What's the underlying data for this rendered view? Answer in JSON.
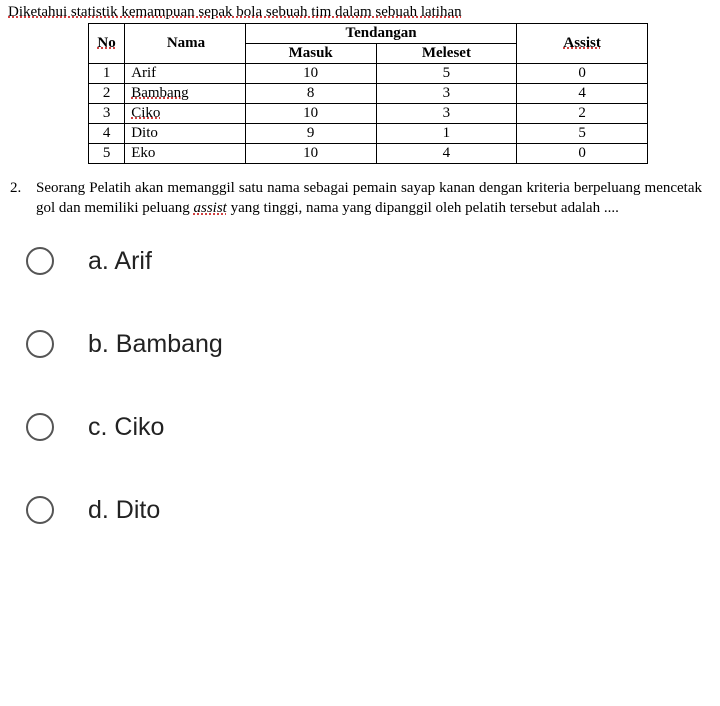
{
  "intro_text": "Diketahui statistik kemampuan sepak bola sebuah tim dalam sebuah latihan",
  "table": {
    "header": {
      "no": "No",
      "nama": "Nama",
      "tendangan": "Tendangan",
      "masuk": "Masuk",
      "meleset": "Meleset",
      "assist": "Assist"
    },
    "rows": [
      {
        "no": "1",
        "nama": "Arif",
        "nama_dotted": false,
        "masuk": "10",
        "meleset": "5",
        "assist": "0"
      },
      {
        "no": "2",
        "nama": "Bambang",
        "nama_dotted": true,
        "masuk": "8",
        "meleset": "3",
        "assist": "4"
      },
      {
        "no": "3",
        "nama": "Ciko",
        "nama_dotted": true,
        "masuk": "10",
        "meleset": "3",
        "assist": "2"
      },
      {
        "no": "4",
        "nama": "Dito",
        "nama_dotted": false,
        "masuk": "9",
        "meleset": "1",
        "assist": "5"
      },
      {
        "no": "5",
        "nama": "Eko",
        "nama_dotted": false,
        "masuk": "10",
        "meleset": "4",
        "assist": "0"
      }
    ]
  },
  "question": {
    "number": "2.",
    "pre": "Seorang Pelatih akan memanggil satu nama sebagai pemain sayap kanan dengan kriteria berpeluang mencetak gol dan memiliki peluang ",
    "italic": "assist",
    "post": " yang tinggi, nama yang dipanggil oleh pelatih tersebut adalah ...."
  },
  "options": [
    {
      "letter": "a.",
      "text": "Arif"
    },
    {
      "letter": "b.",
      "text": "Bambang"
    },
    {
      "letter": "c.",
      "text": "Ciko"
    },
    {
      "letter": "d.",
      "text": "Dito"
    }
  ]
}
